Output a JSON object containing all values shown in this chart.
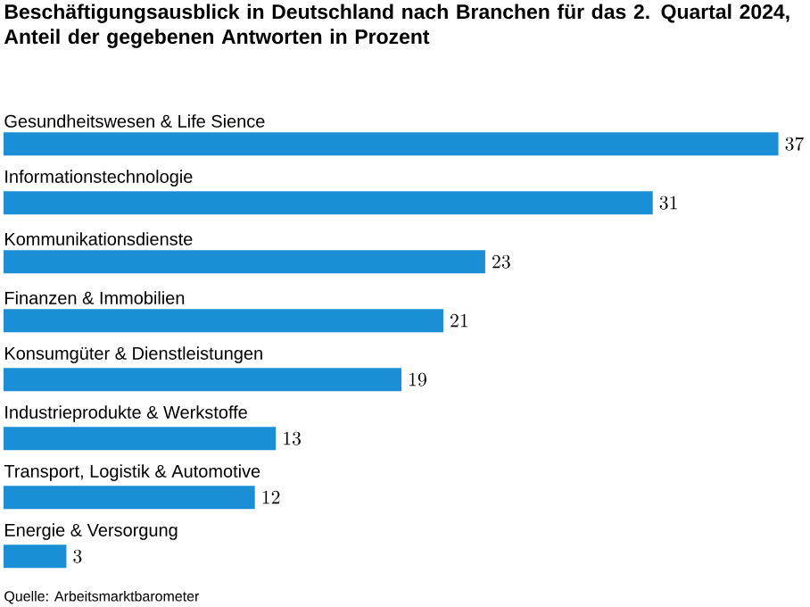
{
  "chart_data": {
    "type": "bar",
    "orientation": "horizontal",
    "title": "Beschäftigungsausblick in Deutschland nach Branchen für das 2. Quartal 2024, Anteil der gegebenen Antworten in Prozent",
    "categories": [
      "Gesundheitswesen & Life Sience",
      "Informationstechnologie",
      "Kommunikationsdienste",
      "Finanzen & Immobilien",
      "Konsumgüter & Dienstleistungen",
      "Industrieprodukte & Werkstoffe",
      "Transport, Logistik & Automotive",
      "Energie & Versorgung"
    ],
    "values": [
      37,
      31,
      23,
      21,
      19,
      13,
      12,
      3
    ],
    "color": "#1a8fd6",
    "data_labels": true,
    "annotations": [
      "Quelle: Arbeitsmarktbarometer"
    ]
  }
}
